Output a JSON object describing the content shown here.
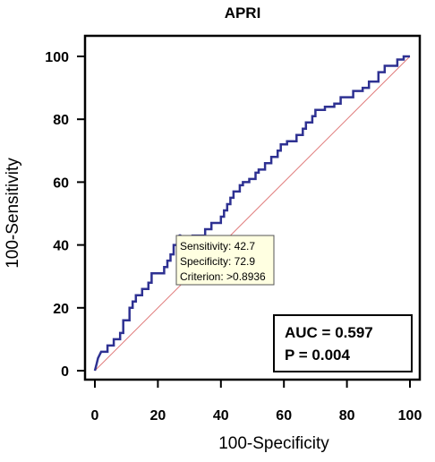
{
  "chart_data": {
    "type": "line",
    "title": "APRI",
    "xlabel": "100-Specificity",
    "ylabel": "100-Sensitivity",
    "xlim": [
      0,
      100
    ],
    "ylim": [
      0,
      100
    ],
    "xticks": [
      0,
      20,
      40,
      60,
      80,
      100
    ],
    "yticks": [
      0,
      20,
      40,
      60,
      80,
      100
    ],
    "grid": false,
    "series": [
      {
        "color": "#2e3192",
        "points": [
          [
            0,
            0
          ],
          [
            0.5,
            2
          ],
          [
            1,
            4
          ],
          [
            2,
            6
          ],
          [
            4,
            6
          ],
          [
            4,
            8
          ],
          [
            6,
            8
          ],
          [
            6,
            10
          ],
          [
            8,
            10
          ],
          [
            8,
            12
          ],
          [
            9,
            12
          ],
          [
            9,
            14
          ],
          [
            9,
            16
          ],
          [
            11,
            16
          ],
          [
            11,
            18
          ],
          [
            11,
            20
          ],
          [
            12,
            20
          ],
          [
            12,
            22
          ],
          [
            13,
            22
          ],
          [
            13,
            24
          ],
          [
            15,
            24
          ],
          [
            15,
            26
          ],
          [
            17,
            26
          ],
          [
            17,
            28
          ],
          [
            18,
            28
          ],
          [
            18,
            30
          ],
          [
            18,
            31
          ],
          [
            22,
            31
          ],
          [
            22,
            33
          ],
          [
            23,
            33
          ],
          [
            23,
            35
          ],
          [
            24,
            35
          ],
          [
            24,
            37
          ],
          [
            25,
            37
          ],
          [
            25,
            40
          ],
          [
            27,
            40
          ],
          [
            27,
            42
          ],
          [
            31,
            42
          ],
          [
            31,
            43
          ],
          [
            35,
            43
          ],
          [
            35,
            45
          ],
          [
            37,
            45
          ],
          [
            37,
            47
          ],
          [
            40,
            47
          ],
          [
            40,
            49
          ],
          [
            41,
            49
          ],
          [
            41,
            51
          ],
          [
            42,
            51
          ],
          [
            42,
            53
          ],
          [
            43,
            53
          ],
          [
            43,
            55
          ],
          [
            44,
            55
          ],
          [
            44,
            57
          ],
          [
            46,
            57
          ],
          [
            46,
            59
          ],
          [
            47,
            59
          ],
          [
            47,
            60
          ],
          [
            49,
            60
          ],
          [
            49,
            61
          ],
          [
            51,
            61
          ],
          [
            51,
            63
          ],
          [
            52,
            63
          ],
          [
            52,
            64
          ],
          [
            54,
            64
          ],
          [
            54,
            66
          ],
          [
            56,
            66
          ],
          [
            56,
            68
          ],
          [
            58,
            68
          ],
          [
            58,
            70
          ],
          [
            59,
            70
          ],
          [
            59,
            72
          ],
          [
            61,
            72
          ],
          [
            61,
            73
          ],
          [
            64,
            73
          ],
          [
            64,
            75
          ],
          [
            66,
            75
          ],
          [
            66,
            77
          ],
          [
            67,
            77
          ],
          [
            67,
            79
          ],
          [
            69,
            79
          ],
          [
            69,
            81
          ],
          [
            70,
            81
          ],
          [
            70,
            83
          ],
          [
            73,
            83
          ],
          [
            73,
            84
          ],
          [
            76,
            84
          ],
          [
            76,
            85
          ],
          [
            78,
            85
          ],
          [
            78,
            87
          ],
          [
            82,
            87
          ],
          [
            82,
            89
          ],
          [
            85,
            89
          ],
          [
            85,
            90
          ],
          [
            87,
            90
          ],
          [
            87,
            92
          ],
          [
            90,
            92
          ],
          [
            90,
            95
          ],
          [
            92,
            95
          ],
          [
            92,
            97
          ],
          [
            96,
            97
          ],
          [
            96,
            99
          ],
          [
            98,
            99
          ],
          [
            98,
            100
          ],
          [
            100,
            100
          ]
        ]
      }
    ],
    "reference_line": {
      "color": "#e07a7a",
      "points": [
        [
          0,
          0
        ],
        [
          100,
          100
        ]
      ]
    },
    "marker": {
      "x": 27,
      "y": 42.7
    },
    "tooltip_lines": [
      "Sensitivity: 42.7",
      "Specificity: 72.9",
      "Criterion: >0.8936"
    ],
    "annotation_lines": [
      "AUC = 0.597",
      "P = 0.004"
    ]
  }
}
